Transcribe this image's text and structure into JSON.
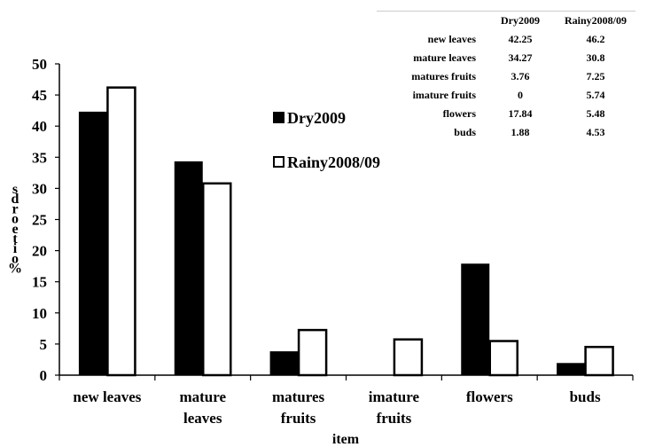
{
  "chart_data": {
    "type": "bar",
    "categories": [
      "new leaves",
      "mature\nleaves",
      "matures\nfruits",
      "imature\nfruits",
      "flowers",
      "buds"
    ],
    "series": [
      {
        "name": "Dry2009",
        "values": [
          42.25,
          34.27,
          3.76,
          0,
          17.84,
          1.88
        ],
        "color": "#000000"
      },
      {
        "name": "Rainy2008/09",
        "values": [
          46.2,
          30.8,
          7.25,
          5.74,
          5.48,
          4.53
        ],
        "color": "#ffffff"
      }
    ],
    "xlabel": "item",
    "ylabel": "sdroeti o%",
    "ylim": [
      0,
      50
    ],
    "yticks": [
      0,
      5,
      10,
      15,
      20,
      25,
      30,
      35,
      40,
      45,
      50
    ],
    "grid": false,
    "legend_placement": "center-right"
  },
  "table": {
    "headers": [
      "",
      "Dry2009",
      "Rainy2008/09"
    ],
    "rows": [
      {
        "label": "new leaves",
        "dry": "42.25",
        "rainy": "46.2"
      },
      {
        "label": "mature leaves",
        "dry": "34.27",
        "rainy": "30.8"
      },
      {
        "label": "matures fruits",
        "dry": "3.76",
        "rainy": "7.25"
      },
      {
        "label": "imature fruits",
        "dry": "0",
        "rainy": "5.74"
      },
      {
        "label": "flowers",
        "dry": "17.84",
        "rainy": "5.48"
      },
      {
        "label": "buds",
        "dry": "1.88",
        "rainy": "4.53"
      }
    ]
  }
}
